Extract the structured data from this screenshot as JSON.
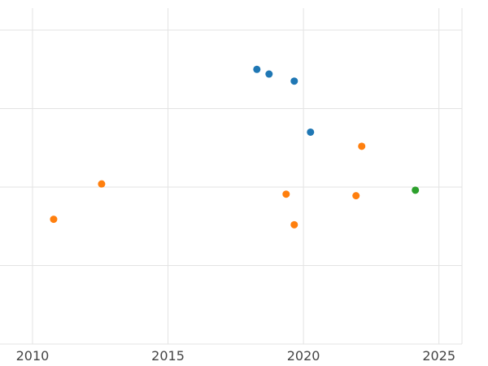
{
  "chart_data": {
    "type": "scatter",
    "title": "",
    "xlabel": "",
    "ylabel": "",
    "legend": "none",
    "grid": true,
    "x_ticks": [
      {
        "value": 2010,
        "label": "2010"
      },
      {
        "value": 2015,
        "label": "2015"
      },
      {
        "value": 2020,
        "label": "2020"
      },
      {
        "value": 2025,
        "label": "2025"
      }
    ],
    "x_range": [
      2008.8,
      2025.85
    ],
    "y_range": [
      0,
      4.28
    ],
    "y_gridlines": [
      0,
      1,
      2,
      3,
      4
    ],
    "styles": {
      "background": "#ffffff",
      "grid_color": "#e3e3e3",
      "tick_label_color": "#444444",
      "marker_radius": 4.5
    },
    "series": [
      {
        "name": "blue",
        "color": "#1f77b4",
        "points": [
          {
            "x": 2018.28,
            "y": 3.5
          },
          {
            "x": 2018.73,
            "y": 3.44
          },
          {
            "x": 2019.66,
            "y": 3.35
          },
          {
            "x": 2020.26,
            "y": 2.7
          }
        ]
      },
      {
        "name": "orange",
        "color": "#ff7f0e",
        "points": [
          {
            "x": 2010.78,
            "y": 1.59
          },
          {
            "x": 2012.55,
            "y": 2.04
          },
          {
            "x": 2019.36,
            "y": 1.91
          },
          {
            "x": 2019.66,
            "y": 1.52
          },
          {
            "x": 2021.94,
            "y": 1.89
          },
          {
            "x": 2022.15,
            "y": 2.52
          }
        ]
      },
      {
        "name": "green",
        "color": "#2ca02c",
        "points": [
          {
            "x": 2024.13,
            "y": 1.96
          }
        ]
      }
    ]
  }
}
